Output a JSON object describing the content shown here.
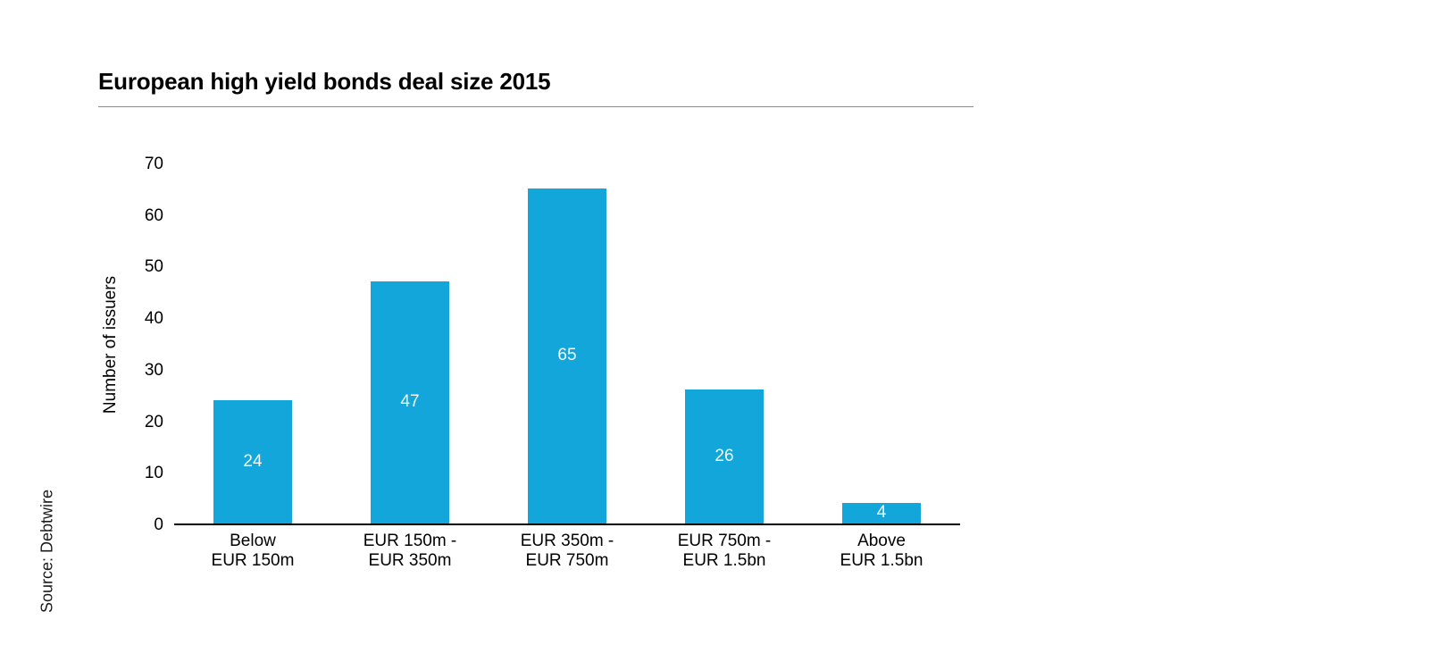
{
  "chart": {
    "title": "European high yield bonds deal size 2015",
    "ylabel": "Number of issuers",
    "source": "Source: Debtwire"
  },
  "chart_data": {
    "type": "bar",
    "title": "European high yield bonds deal size 2015",
    "categories": [
      [
        "Below",
        "EUR 150m"
      ],
      [
        "EUR 150m -",
        "EUR 350m"
      ],
      [
        "EUR 350m -",
        "EUR 750m"
      ],
      [
        "EUR 750m -",
        "EUR 1.5bn"
      ],
      [
        "Above",
        "EUR 1.5bn"
      ]
    ],
    "categories_joined": [
      "Below EUR 150m",
      "EUR 150m - EUR 350m",
      "EUR 350m - EUR 750m",
      "EUR 750m - EUR 1.5bn",
      "Above EUR 1.5bn"
    ],
    "values": [
      24,
      47,
      65,
      26,
      4
    ],
    "xlabel": "",
    "ylabel": "Number of issuers",
    "ylim": [
      0,
      70
    ],
    "ytick_step": 10,
    "ytick_labels": [
      "0",
      "10",
      "20",
      "30",
      "40",
      "50",
      "60",
      "70"
    ],
    "grid": false,
    "legend": false,
    "value_labels_inside_bars": true,
    "source": "Source: Debtwire",
    "colors": {
      "bar": "#12a6db",
      "bar_value_text": "#f4fafd",
      "title_rule": "#8c8c8c",
      "axis_line": "#000000",
      "text": "#000000"
    }
  }
}
